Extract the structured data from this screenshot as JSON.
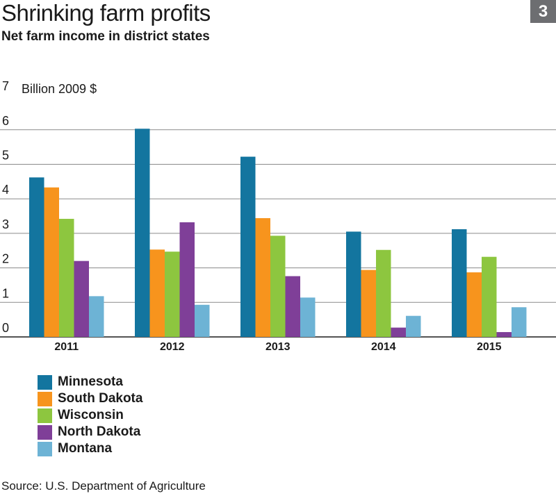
{
  "header": {
    "title": "Shrinking farm profits",
    "subtitle": "Net farm income in district states",
    "badge": "3"
  },
  "footer": {
    "source": "Source: U.S. Department of Agriculture"
  },
  "chart_data": {
    "type": "bar",
    "title": "Shrinking farm profits",
    "subtitle": "Net farm income in district states",
    "ylabel": "Billion 2009 $",
    "ylim": [
      0,
      7
    ],
    "yticks": [
      0,
      1,
      2,
      3,
      4,
      5,
      6,
      7
    ],
    "grid": true,
    "legend_position": "bottom-left",
    "categories": [
      "2011",
      "2012",
      "2013",
      "2014",
      "2015"
    ],
    "series": [
      {
        "name": "Minnesota",
        "color": "#13759f",
        "values": [
          4.62,
          6.03,
          5.22,
          3.05,
          3.12
        ]
      },
      {
        "name": "South Dakota",
        "color": "#f7941d",
        "values": [
          4.33,
          2.53,
          3.44,
          1.94,
          1.87
        ]
      },
      {
        "name": "Wisconsin",
        "color": "#8dc63f",
        "values": [
          3.42,
          2.47,
          2.93,
          2.52,
          2.32
        ]
      },
      {
        "name": "North Dakota",
        "color": "#7f3f98",
        "values": [
          2.2,
          3.32,
          1.76,
          0.27,
          0.14
        ]
      },
      {
        "name": "Montana",
        "color": "#6db3d5",
        "values": [
          1.18,
          0.93,
          1.14,
          0.61,
          0.86
        ]
      }
    ]
  }
}
